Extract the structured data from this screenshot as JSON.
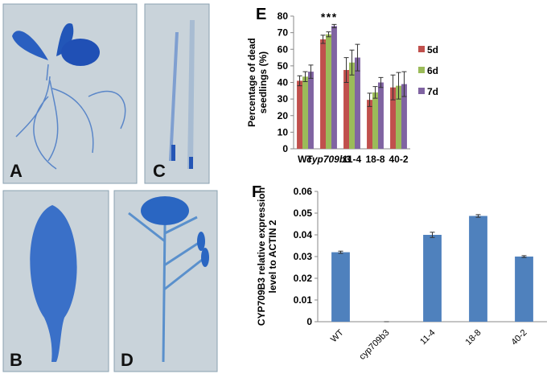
{
  "panels": [
    {
      "label": "A"
    },
    {
      "label": "C"
    },
    {
      "label": "B"
    },
    {
      "label": "D"
    }
  ],
  "chart_data": [
    {
      "type": "bar",
      "panel_label": "E",
      "ylabel": [
        "Percentage of dead",
        "seedlings (%)"
      ],
      "categories": [
        "WT",
        "cyp709b3",
        "11-4",
        "18-8",
        "40-2"
      ],
      "series": [
        {
          "name": "5d",
          "color": "#c0504d",
          "values": [
            41,
            66,
            47.5,
            29.5,
            37
          ],
          "errors": [
            3,
            2.5,
            7.5,
            4,
            7.5
          ]
        },
        {
          "name": "6d",
          "color": "#9bbb59",
          "values": [
            43.5,
            69,
            52,
            34,
            38
          ],
          "errors": [
            3,
            1.5,
            7.5,
            3.5,
            8
          ]
        },
        {
          "name": "7d",
          "color": "#8064a2",
          "values": [
            46.5,
            74,
            55,
            40,
            39
          ],
          "errors": [
            4,
            1,
            8,
            3,
            7.5
          ]
        }
      ],
      "annotations": [
        "*",
        "*",
        "*"
      ],
      "ylim": [
        0,
        80
      ],
      "yticks": [
        0,
        10,
        20,
        30,
        40,
        50,
        60,
        70,
        80
      ],
      "grid": false,
      "legend": "right"
    },
    {
      "type": "bar",
      "panel_label": "F",
      "ylabel": [
        "CYP709B3 relative expression",
        "level to ACTIN 2"
      ],
      "categories": [
        "WT",
        "cyp709b3",
        "11-4",
        "18-8",
        "40-2"
      ],
      "series": [
        {
          "name": "expression",
          "color": "#4f81bd",
          "values": [
            0.032,
            0,
            0.04,
            0.0487,
            0.03
          ],
          "errors": [
            0.0005,
            0,
            0.0012,
            0.0006,
            0.0004
          ]
        }
      ],
      "ylim": [
        0,
        0.06
      ],
      "yticks": [
        0,
        0.01,
        0.02,
        0.03,
        0.04,
        0.05,
        0.06
      ],
      "grid": false,
      "legend": "none",
      "rotate_categories": true
    }
  ]
}
